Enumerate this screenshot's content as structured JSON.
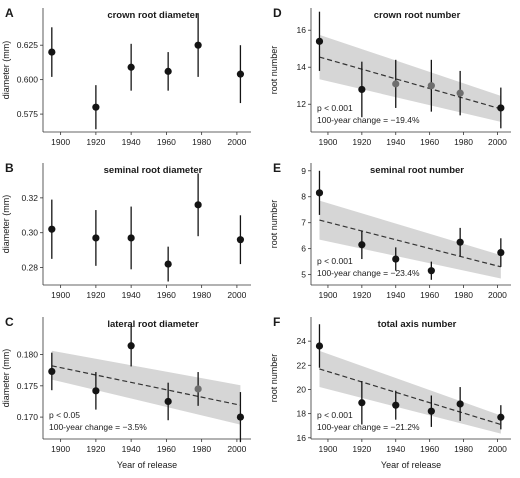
{
  "figure": {
    "x_axis_title": "Year of release",
    "colors": {
      "point": "#141414",
      "point_highlight": "#6e6e6e",
      "ci_band": "#d6d6d6",
      "trend": "#333333",
      "axis": "#333333"
    }
  },
  "chart_data": [
    {
      "type": "scatter",
      "letter": "A",
      "title": "crown root diameter",
      "xlabel": "",
      "ylabel": "diameter (mm)",
      "xlim": [
        1890,
        2008
      ],
      "ylim": [
        0.562,
        0.652
      ],
      "xticks": [
        1900,
        1920,
        1940,
        1960,
        1980,
        2000
      ],
      "xtick_labels": [
        "1900",
        "1920",
        "1940",
        "1960",
        "1980",
        "2000"
      ],
      "yticks": [
        0.575,
        0.6,
        0.625
      ],
      "ytick_labels": [
        "0.575",
        "0.600",
        "0.625"
      ],
      "x": [
        1895,
        1920,
        1940,
        1961,
        1978,
        2002
      ],
      "y": [
        0.62,
        0.58,
        0.609,
        0.606,
        0.625,
        0.604
      ],
      "err": [
        0.018,
        0.016,
        0.017,
        0.014,
        0.023,
        0.021
      ],
      "highlight": [],
      "trend": null,
      "stat_p": "",
      "stat_change": ""
    },
    {
      "type": "scatter",
      "letter": "B",
      "title": "seminal root diameter",
      "xlabel": "",
      "ylabel": "diameter (mm)",
      "xlim": [
        1890,
        2008
      ],
      "ylim": [
        0.27,
        0.34
      ],
      "xticks": [
        1900,
        1920,
        1940,
        1960,
        1980,
        2000
      ],
      "xtick_labels": [
        "1900",
        "1920",
        "1940",
        "1960",
        "1980",
        "2000"
      ],
      "yticks": [
        0.28,
        0.3,
        0.32
      ],
      "ytick_labels": [
        "0.28",
        "0.30",
        "0.32"
      ],
      "x": [
        1895,
        1920,
        1940,
        1961,
        1978,
        2002
      ],
      "y": [
        0.302,
        0.297,
        0.297,
        0.282,
        0.316,
        0.296
      ],
      "err": [
        0.017,
        0.016,
        0.018,
        0.01,
        0.018,
        0.014
      ],
      "highlight": [],
      "trend": null,
      "stat_p": "",
      "stat_change": ""
    },
    {
      "type": "scatter",
      "letter": "C",
      "title": "lateral root diameter",
      "xlabel": "Year of release",
      "ylabel": "diameter (mm)",
      "xlim": [
        1890,
        2008
      ],
      "ylim": [
        0.1665,
        0.186
      ],
      "xticks": [
        1900,
        1920,
        1940,
        1960,
        1980,
        2000
      ],
      "xtick_labels": [
        "1900",
        "1920",
        "1940",
        "1960",
        "1980",
        "2000"
      ],
      "yticks": [
        0.17,
        0.175,
        0.18
      ],
      "ytick_labels": [
        "0.170",
        "0.175",
        "0.180"
      ],
      "x": [
        1895,
        1920,
        1940,
        1961,
        1978,
        2002
      ],
      "y": [
        0.1773,
        0.1742,
        0.1814,
        0.1725,
        0.1745,
        0.17
      ],
      "err": [
        0.003,
        0.003,
        0.0033,
        0.003,
        0.0027,
        0.004
      ],
      "highlight": [
        4
      ],
      "trend": {
        "x": [
          1895,
          2002
        ],
        "y": [
          0.1782,
          0.1719
        ],
        "lower": [
          0.176,
          0.1688
        ],
        "upper": [
          0.1806,
          0.1751
        ]
      },
      "stat_p": "p < 0.05",
      "stat_change": "100-year change = −3.5%"
    },
    {
      "type": "scatter",
      "letter": "D",
      "title": "crown root number",
      "xlabel": "",
      "ylabel": "root number",
      "xlim": [
        1890,
        2008
      ],
      "ylim": [
        10.5,
        17.2
      ],
      "xticks": [
        1900,
        1920,
        1940,
        1960,
        1980,
        2000
      ],
      "xtick_labels": [
        "1900",
        "1920",
        "1940",
        "1960",
        "1980",
        "2000"
      ],
      "yticks": [
        12,
        14,
        16
      ],
      "ytick_labels": [
        "12",
        "14",
        "16"
      ],
      "x": [
        1895,
        1920,
        1940,
        1961,
        1978,
        2002
      ],
      "y": [
        15.4,
        12.8,
        13.1,
        13.0,
        12.6,
        11.8
      ],
      "err": [
        1.6,
        1.5,
        1.3,
        1.4,
        1.2,
        1.1
      ],
      "highlight": [
        2,
        3,
        4
      ],
      "trend": {
        "x": [
          1895,
          2002
        ],
        "y": [
          14.55,
          11.75
        ],
        "lower": [
          13.35,
          11.05
        ],
        "upper": [
          15.75,
          12.45
        ]
      },
      "stat_p": "p < 0.001",
      "stat_change": "100-year change = −19.4%"
    },
    {
      "type": "scatter",
      "letter": "E",
      "title": "seminal root number",
      "xlabel": "",
      "ylabel": "root number",
      "xlim": [
        1890,
        2008
      ],
      "ylim": [
        4.6,
        9.3
      ],
      "xticks": [
        1900,
        1920,
        1940,
        1960,
        1980,
        2000
      ],
      "xtick_labels": [
        "1900",
        "1920",
        "1940",
        "1960",
        "1980",
        "2000"
      ],
      "yticks": [
        5,
        6,
        7,
        8,
        9
      ],
      "ytick_labels": [
        "5",
        "6",
        "7",
        "8",
        "9"
      ],
      "x": [
        1895,
        1920,
        1940,
        1961,
        1978,
        2002
      ],
      "y": [
        8.15,
        6.15,
        5.6,
        5.15,
        6.25,
        5.85
      ],
      "err": [
        0.85,
        0.55,
        0.45,
        0.35,
        0.55,
        0.55
      ],
      "highlight": [],
      "trend": {
        "x": [
          1895,
          2002
        ],
        "y": [
          7.1,
          5.3
        ],
        "lower": [
          6.35,
          4.85
        ],
        "upper": [
          7.85,
          5.75
        ]
      },
      "stat_p": "p < 0.001",
      "stat_change": "100-year change = −23.4%"
    },
    {
      "type": "scatter",
      "letter": "F",
      "title": "total axis number",
      "xlabel": "Year of release",
      "ylabel": "root number",
      "xlim": [
        1890,
        2008
      ],
      "ylim": [
        15.9,
        26.0
      ],
      "xticks": [
        1900,
        1920,
        1940,
        1960,
        1980,
        2000
      ],
      "xtick_labels": [
        "1900",
        "1920",
        "1940",
        "1960",
        "1980",
        "2000"
      ],
      "yticks": [
        16,
        18,
        20,
        22,
        24
      ],
      "ytick_labels": [
        "16",
        "18",
        "20",
        "22",
        "24"
      ],
      "x": [
        1895,
        1920,
        1940,
        1961,
        1978,
        2002
      ],
      "y": [
        23.6,
        18.9,
        18.7,
        18.2,
        18.8,
        17.7
      ],
      "err": [
        1.8,
        1.8,
        1.2,
        1.3,
        1.4,
        1.0
      ],
      "highlight": [],
      "trend": {
        "x": [
          1895,
          2002
        ],
        "y": [
          21.7,
          17.1
        ],
        "lower": [
          20.2,
          16.35
        ],
        "upper": [
          23.2,
          17.85
        ]
      },
      "stat_p": "p < 0.001",
      "stat_change": "100-year change = −21.2%"
    }
  ]
}
